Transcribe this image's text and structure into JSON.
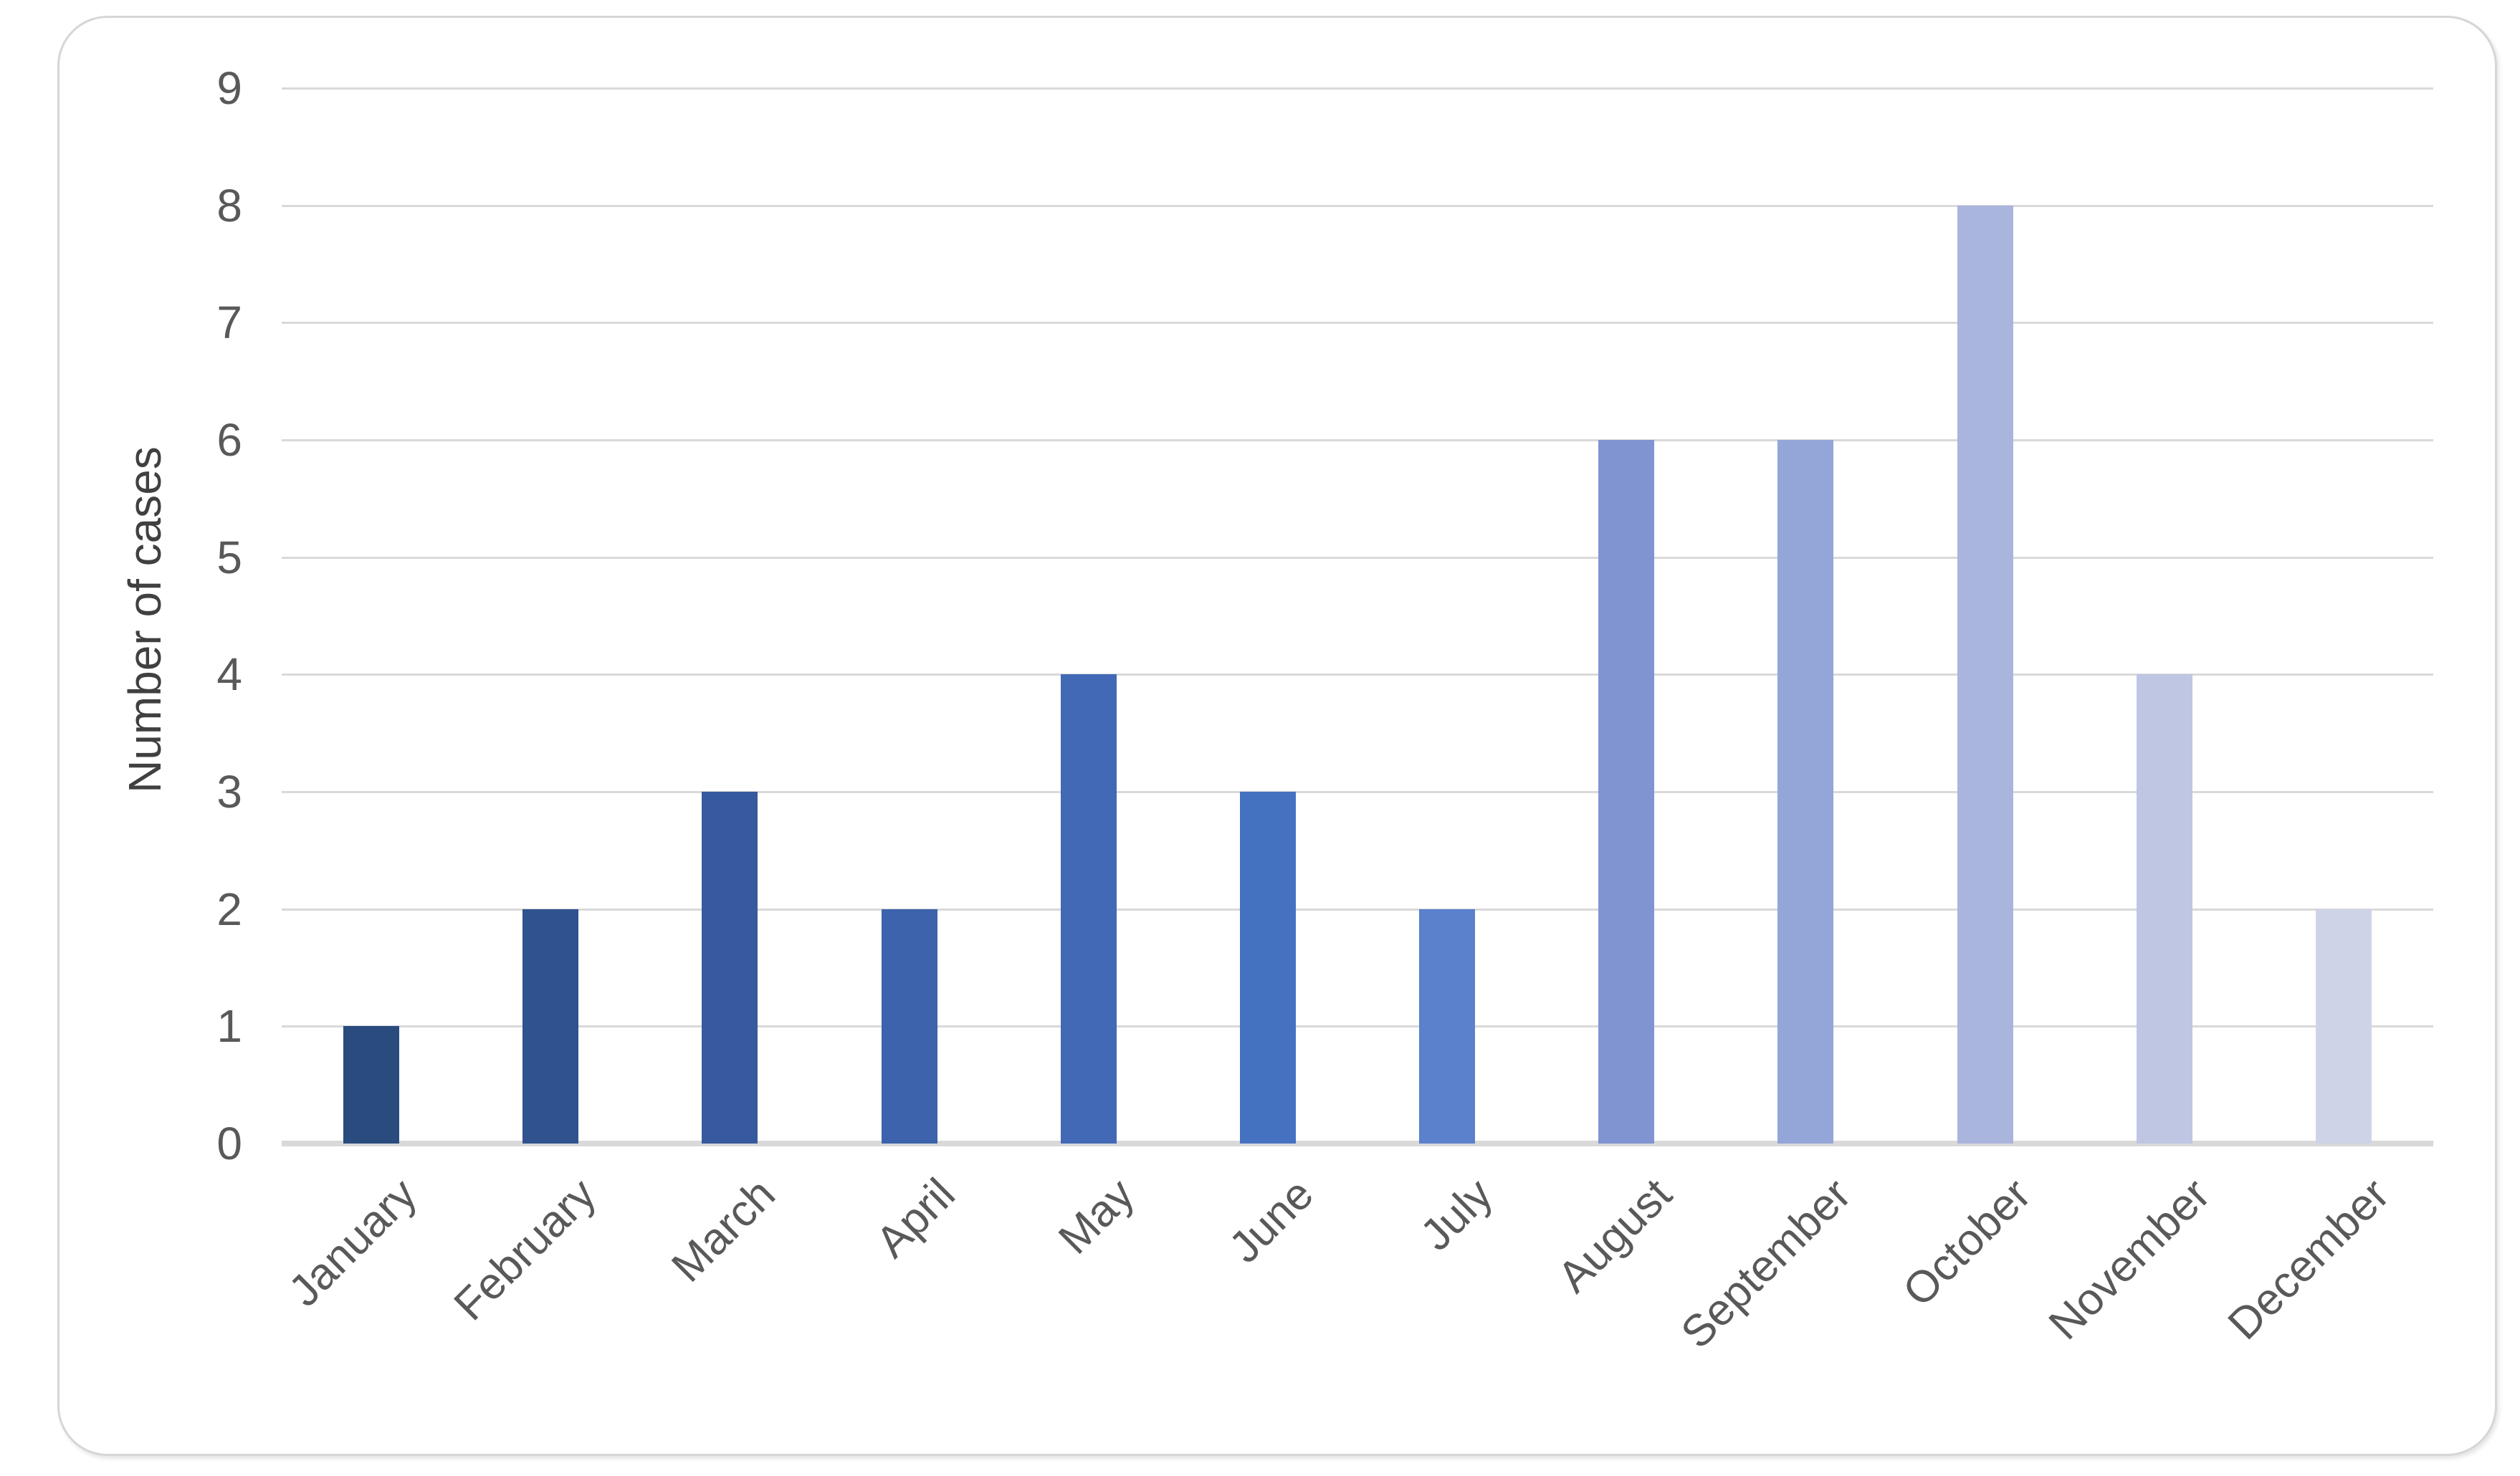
{
  "chart_data": {
    "type": "bar",
    "title": "",
    "xlabel": "",
    "ylabel": "Number of cases",
    "categories": [
      "January",
      "February",
      "March",
      "April",
      "May",
      "June",
      "July",
      "August",
      "September",
      "October",
      "November",
      "December"
    ],
    "values": [
      1,
      2,
      3,
      2,
      4,
      3,
      2,
      6,
      6,
      8,
      4,
      2
    ],
    "bar_colors": [
      "#2A4B7D",
      "#30538F",
      "#365A9D",
      "#3C63AB",
      "#4169B6",
      "#4571C1",
      "#5B80CC",
      "#8094D2",
      "#94A5D8",
      "#AAB5DD",
      "#BEC6E3",
      "#CED4E8"
    ],
    "ylim": [
      0,
      9
    ],
    "yticks": [
      0,
      1,
      2,
      3,
      4,
      5,
      6,
      7,
      8,
      9
    ],
    "grid": "horizontal",
    "legend": "none",
    "colors": {
      "gridline": "#D9D9D9",
      "axis_line": "#D9D9D9",
      "tick_text": "#595959",
      "axis_title_text": "#404040",
      "frame_border": "#D6D6D6",
      "background": "#FFFFFF"
    }
  }
}
